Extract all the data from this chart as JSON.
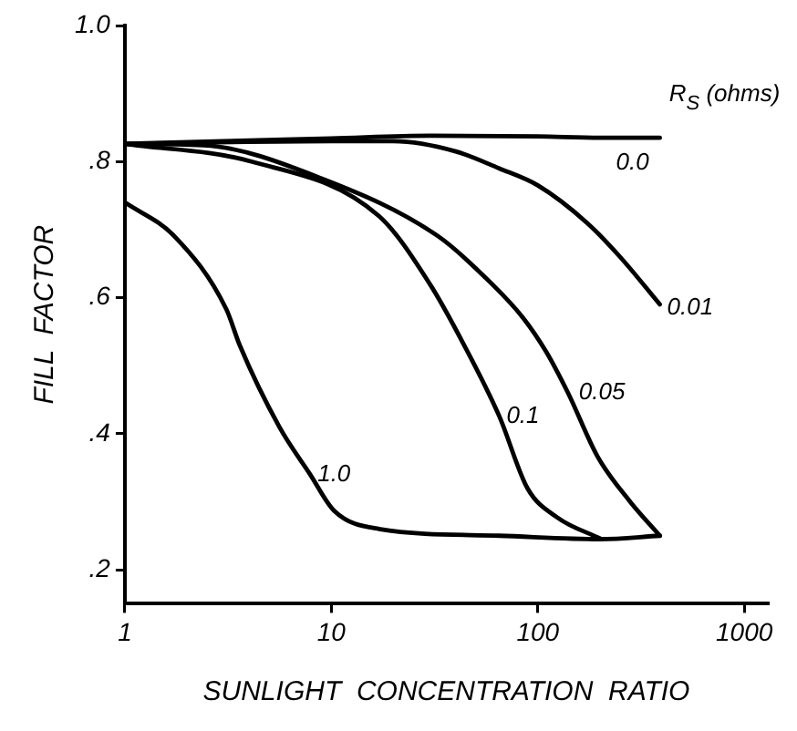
{
  "chart_data": {
    "type": "line",
    "xlabel": "SUNLIGHT  CONCENTRATION  RATIO",
    "ylabel": "FILL  FACTOR",
    "log": "x",
    "xlim": [
      1,
      1300
    ],
    "xticks": [
      1,
      10,
      100,
      1000
    ],
    "ylim": [
      0.15,
      1.0
    ],
    "yticks": [
      {
        "value": 0.2,
        "label": ".2"
      },
      {
        "value": 0.4,
        "label": ".4"
      },
      {
        "value": 0.6,
        "label": ".6"
      },
      {
        "value": 0.8,
        "label": ".8"
      },
      {
        "value": 1.0,
        "label": "1.0"
      }
    ],
    "grid": false,
    "legend": false,
    "marker": "none",
    "line_style": "solid",
    "series": [
      {
        "name": "0.0",
        "color": "#000000",
        "x": [
          1,
          3,
          10,
          30,
          100,
          200,
          390
        ],
        "values": [
          0.826,
          0.83,
          0.834,
          0.838,
          0.837,
          0.835,
          0.835
        ]
      },
      {
        "name": "0.01",
        "color": "#000000",
        "x": [
          1,
          10,
          20,
          40,
          65,
          100,
          173,
          250,
          390
        ],
        "values": [
          0.826,
          0.83,
          0.83,
          0.815,
          0.79,
          0.765,
          0.71,
          0.66,
          0.59
        ]
      },
      {
        "name": "0.05",
        "color": "#000000",
        "x": [
          1,
          2.4,
          9,
          33,
          60,
          85,
          110,
          140,
          195,
          280,
          390
        ],
        "values": [
          0.826,
          0.824,
          0.775,
          0.69,
          0.62,
          0.57,
          0.52,
          0.46,
          0.366,
          0.3,
          0.25
        ]
      },
      {
        "name": "0.1",
        "color": "#000000",
        "x": [
          1,
          4.1,
          17,
          30,
          44,
          65,
          89,
          124,
          200
        ],
        "values": [
          0.826,
          0.8,
          0.72,
          0.62,
          0.53,
          0.426,
          0.32,
          0.277,
          0.246
        ]
      },
      {
        "name": "1.0",
        "color": "#000000",
        "x": [
          1,
          1.74,
          3.1,
          3.6,
          5.6,
          7.9,
          10.3,
          17,
          65,
          200,
          390
        ],
        "values": [
          0.74,
          0.69,
          0.583,
          0.53,
          0.41,
          0.34,
          0.287,
          0.26,
          0.25,
          0.245,
          0.25
        ]
      }
    ],
    "annotations": [
      "R$_{S}$ (ohms)"
    ]
  }
}
